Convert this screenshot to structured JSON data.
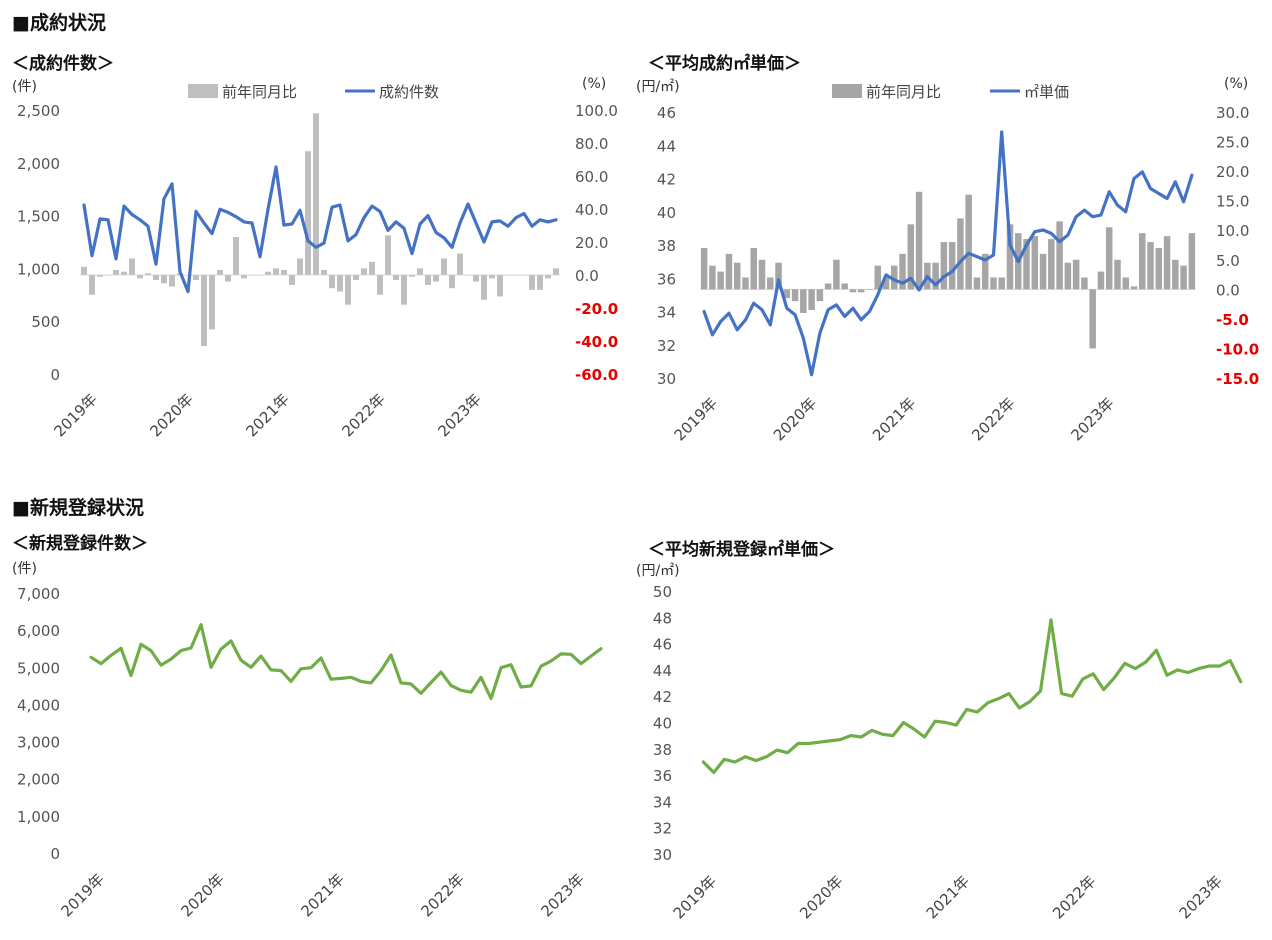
{
  "sections": {
    "contracts": "■成約状況",
    "registrations": "■新規登録状況"
  },
  "chart_data": [
    {
      "id": "contract-count",
      "type": "bar+line",
      "title": "＜成約件数＞",
      "left_unit": "(件)",
      "right_unit": "(%)",
      "left_axis": {
        "min": 0,
        "max": 2500,
        "ticks": [
          "0",
          "500",
          "1,000",
          "1,500",
          "2,000",
          "2,500"
        ]
      },
      "right_axis": {
        "min": -60,
        "max": 100,
        "ticks": [
          "-60.0",
          "-40.0",
          "-20.0",
          "0.0",
          "20.0",
          "40.0",
          "60.0",
          "80.0",
          "100.0"
        ]
      },
      "x_labels": [
        "2019年",
        "2020年",
        "2021年",
        "2022年",
        "2023年"
      ],
      "series": [
        {
          "name": "前年同月比",
          "kind": "bar",
          "axis": "right",
          "color": "#bfbfbf",
          "values": [
            5,
            -12,
            -1,
            0,
            3,
            2,
            10,
            -2,
            1,
            -3,
            -5,
            -7,
            1,
            0,
            -3,
            -43,
            -33,
            3,
            -4,
            23,
            -2,
            0,
            0,
            2,
            4,
            3,
            -6,
            10,
            75,
            98,
            3,
            -8,
            -10,
            -18,
            -3,
            4,
            8,
            -12,
            24,
            -3,
            -18,
            -1,
            4,
            -6,
            -4,
            10,
            -8,
            13,
            0,
            -4,
            -15,
            -2,
            -13,
            0,
            0,
            0,
            -9,
            -9,
            -2,
            4
          ]
        },
        {
          "name": "成約件数",
          "kind": "line",
          "axis": "left",
          "color": "#4472c4",
          "values": [
            1600,
            1120,
            1470,
            1460,
            1090,
            1590,
            1510,
            1460,
            1400,
            1040,
            1660,
            1800,
            970,
            780,
            1540,
            1430,
            1330,
            1560,
            1530,
            1490,
            1440,
            1430,
            1110,
            1560,
            1960,
            1410,
            1420,
            1550,
            1260,
            1200,
            1240,
            1580,
            1600,
            1260,
            1320,
            1480,
            1590,
            1540,
            1360,
            1440,
            1380,
            1140,
            1420,
            1500,
            1340,
            1290,
            1200,
            1430,
            1610,
            1430,
            1250,
            1440,
            1450,
            1400,
            1480,
            1520,
            1400,
            1460,
            1440,
            1460
          ]
        }
      ]
    },
    {
      "id": "contract-price",
      "type": "bar+line",
      "title": "＜平均成約㎡単価＞",
      "left_unit": "(円/㎡)",
      "right_unit": "(%)",
      "left_axis": {
        "min": 30,
        "max": 46,
        "ticks": [
          "30",
          "32",
          "34",
          "36",
          "38",
          "40",
          "42",
          "44",
          "46"
        ]
      },
      "right_axis": {
        "min": -15,
        "max": 30,
        "ticks": [
          "-15.0",
          "-10.0",
          "-5.0",
          "0.0",
          "5.0",
          "10.0",
          "15.0",
          "20.0",
          "25.0",
          "30.0"
        ]
      },
      "x_labels": [
        "2019年",
        "2020年",
        "2021年",
        "2022年",
        "2023年"
      ],
      "series": [
        {
          "name": "前年同月比",
          "kind": "bar",
          "axis": "right",
          "color": "#a6a6a6",
          "values": [
            7,
            4,
            3,
            6,
            4.5,
            2,
            7,
            5,
            2,
            4.5,
            -1.5,
            -2,
            -4,
            -3.5,
            -2,
            1,
            5,
            1,
            -0.5,
            -0.5,
            0,
            4,
            2,
            4,
            6,
            11,
            16.5,
            4.5,
            4.5,
            8,
            8,
            12,
            16,
            2,
            6,
            2,
            2,
            11,
            9.5,
            8.5,
            9,
            6,
            8.5,
            11.5,
            4.5,
            5,
            2,
            -10,
            3,
            10.5,
            5,
            2,
            0.5,
            9.5,
            8,
            7,
            9,
            5,
            4,
            9.5
          ]
        },
        {
          "name": "㎡単価",
          "kind": "line",
          "axis": "left",
          "color": "#4472c4",
          "values": [
            34.0,
            32.6,
            33.4,
            33.9,
            32.9,
            33.5,
            34.5,
            34.1,
            33.2,
            35.9,
            34.2,
            33.8,
            32.4,
            30.2,
            32.7,
            34.1,
            34.4,
            33.7,
            34.2,
            33.5,
            34.0,
            35.0,
            36.2,
            35.9,
            35.7,
            36.0,
            35.3,
            36.1,
            35.6,
            36.1,
            36.4,
            37.0,
            37.5,
            37.3,
            37.1,
            37.4,
            44.8,
            38.0,
            37.0,
            38.0,
            38.8,
            38.9,
            38.7,
            38.2,
            38.6,
            39.7,
            40.1,
            39.7,
            39.8,
            41.2,
            40.4,
            40.0,
            42.0,
            42.4,
            41.4,
            41.1,
            40.8,
            41.8,
            40.6,
            42.2
          ]
        }
      ]
    },
    {
      "id": "registration-count",
      "type": "line",
      "title": "＜新規登録件数＞",
      "left_unit": "(件)",
      "left_axis": {
        "min": 0,
        "max": 7000,
        "ticks": [
          "0",
          "1,000",
          "2,000",
          "3,000",
          "4,000",
          "5,000",
          "6,000",
          "7,000"
        ]
      },
      "x_labels": [
        "2019年",
        "2020年",
        "2021年",
        "2022年",
        "2023年"
      ],
      "series": [
        {
          "name": "新規登録件数",
          "kind": "line",
          "axis": "left",
          "color": "#70ad47",
          "values": [
            5270,
            5100,
            5320,
            5510,
            4780,
            5620,
            5450,
            5060,
            5220,
            5450,
            5520,
            6150,
            5000,
            5490,
            5710,
            5190,
            5000,
            5300,
            4930,
            4910,
            4620,
            4960,
            4990,
            5250,
            4680,
            4700,
            4730,
            4620,
            4580,
            4910,
            5330,
            4580,
            4550,
            4300,
            4590,
            4870,
            4510,
            4380,
            4330,
            4730,
            4160,
            4990,
            5070,
            4470,
            4500,
            5030,
            5170,
            5360,
            5350,
            5100,
            5300,
            5500
          ]
        }
      ]
    },
    {
      "id": "registration-price",
      "type": "line",
      "title": "＜平均新規登録㎡単価＞",
      "left_unit": "(円/㎡)",
      "left_axis": {
        "min": 30,
        "max": 50,
        "ticks": [
          "30",
          "32",
          "34",
          "36",
          "38",
          "40",
          "42",
          "44",
          "46",
          "48",
          "50"
        ]
      },
      "x_labels": [
        "2019年",
        "2020年",
        "2021年",
        "2022年",
        "2023年"
      ],
      "series": [
        {
          "name": "新規登録㎡単価",
          "kind": "line",
          "axis": "left",
          "color": "#70ad47",
          "values": [
            37.0,
            36.2,
            37.2,
            37.0,
            37.4,
            37.1,
            37.4,
            37.9,
            37.7,
            38.4,
            38.4,
            38.5,
            38.6,
            38.7,
            39.0,
            38.9,
            39.4,
            39.1,
            39.0,
            40.0,
            39.5,
            38.9,
            40.1,
            40.0,
            39.8,
            41.0,
            40.8,
            41.5,
            41.8,
            42.2,
            41.1,
            41.6,
            42.4,
            47.8,
            42.2,
            42.0,
            43.3,
            43.7,
            42.5,
            43.4,
            44.5,
            44.1,
            44.6,
            45.5,
            43.6,
            44.0,
            43.8,
            44.1,
            44.3,
            44.3,
            44.7,
            43.1
          ]
        }
      ]
    }
  ]
}
